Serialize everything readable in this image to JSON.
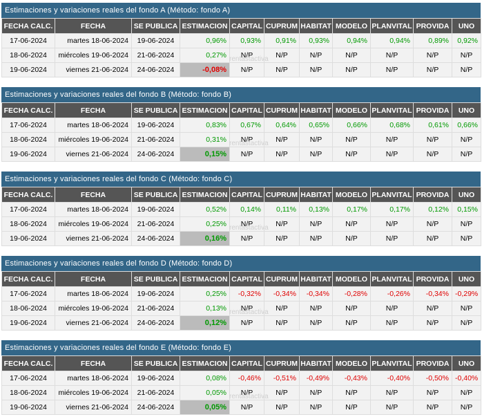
{
  "columns": [
    "FECHA CALC.",
    "FECHA",
    "SE PUBLICA",
    "ESTIMACION",
    "CAPITAL",
    "CUPRUM",
    "HABITAT",
    "MODELO",
    "PLANVITAL",
    "PROVIDA",
    "UNO"
  ],
  "watermark": "rentastactiva",
  "colors": {
    "header_bar": "#336688",
    "column_header": "#555555",
    "positive": "#009900",
    "negative": "#e00000",
    "highlight": "#bbbbbb"
  },
  "sections": [
    {
      "title": "Estimaciones y variaciones reales del fondo A (Método: fondo A)",
      "rows": [
        [
          "17-06-2024",
          "martes 18-06-2024",
          "19-06-2024",
          "0,96%",
          "0,93%",
          "0,91%",
          "0,93%",
          "0,94%",
          "0,94%",
          "0,89%",
          "0,92%"
        ],
        [
          "18-06-2024",
          "miércoles 19-06-2024",
          "21-06-2024",
          "0,27%",
          "N/P",
          "N/P",
          "N/P",
          "N/P",
          "N/P",
          "N/P",
          "N/P"
        ],
        [
          "19-06-2024",
          "viernes 21-06-2024",
          "24-06-2024",
          "-0,08%",
          "N/P",
          "N/P",
          "N/P",
          "N/P",
          "N/P",
          "N/P",
          "N/P"
        ]
      ]
    },
    {
      "title": "Estimaciones y variaciones reales del fondo B (Método: fondo B)",
      "rows": [
        [
          "17-06-2024",
          "martes 18-06-2024",
          "19-06-2024",
          "0,83%",
          "0,67%",
          "0,64%",
          "0,65%",
          "0,66%",
          "0,68%",
          "0,61%",
          "0,66%"
        ],
        [
          "18-06-2024",
          "miércoles 19-06-2024",
          "21-06-2024",
          "0,31%",
          "N/P",
          "N/P",
          "N/P",
          "N/P",
          "N/P",
          "N/P",
          "N/P"
        ],
        [
          "19-06-2024",
          "viernes 21-06-2024",
          "24-06-2024",
          "0,15%",
          "N/P",
          "N/P",
          "N/P",
          "N/P",
          "N/P",
          "N/P",
          "N/P"
        ]
      ]
    },
    {
      "title": "Estimaciones y variaciones reales del fondo C (Método: fondo C)",
      "rows": [
        [
          "17-06-2024",
          "martes 18-06-2024",
          "19-06-2024",
          "0,52%",
          "0,14%",
          "0,11%",
          "0,13%",
          "0,17%",
          "0,17%",
          "0,12%",
          "0,15%"
        ],
        [
          "18-06-2024",
          "miércoles 19-06-2024",
          "21-06-2024",
          "0,25%",
          "N/P",
          "N/P",
          "N/P",
          "N/P",
          "N/P",
          "N/P",
          "N/P"
        ],
        [
          "19-06-2024",
          "viernes 21-06-2024",
          "24-06-2024",
          "0,16%",
          "N/P",
          "N/P",
          "N/P",
          "N/P",
          "N/P",
          "N/P",
          "N/P"
        ]
      ]
    },
    {
      "title": "Estimaciones y variaciones reales del fondo D (Método: fondo D)",
      "rows": [
        [
          "17-06-2024",
          "martes 18-06-2024",
          "19-06-2024",
          "0,25%",
          "-0,32%",
          "-0,34%",
          "-0,34%",
          "-0,28%",
          "-0,26%",
          "-0,34%",
          "-0,29%"
        ],
        [
          "18-06-2024",
          "miércoles 19-06-2024",
          "21-06-2024",
          "0,13%",
          "N/P",
          "N/P",
          "N/P",
          "N/P",
          "N/P",
          "N/P",
          "N/P"
        ],
        [
          "19-06-2024",
          "viernes 21-06-2024",
          "24-06-2024",
          "0,12%",
          "N/P",
          "N/P",
          "N/P",
          "N/P",
          "N/P",
          "N/P",
          "N/P"
        ]
      ]
    },
    {
      "title": "Estimaciones y variaciones reales del fondo E (Método: fondo E)",
      "rows": [
        [
          "17-06-2024",
          "martes 18-06-2024",
          "19-06-2024",
          "0,08%",
          "-0,46%",
          "-0,51%",
          "-0,49%",
          "-0,43%",
          "-0,40%",
          "-0,50%",
          "-0,40%"
        ],
        [
          "18-06-2024",
          "miércoles 19-06-2024",
          "21-06-2024",
          "0,05%",
          "N/P",
          "N/P",
          "N/P",
          "N/P",
          "N/P",
          "N/P",
          "N/P"
        ],
        [
          "19-06-2024",
          "viernes 21-06-2024",
          "24-06-2024",
          "0,05%",
          "N/P",
          "N/P",
          "N/P",
          "N/P",
          "N/P",
          "N/P",
          "N/P"
        ]
      ]
    }
  ]
}
